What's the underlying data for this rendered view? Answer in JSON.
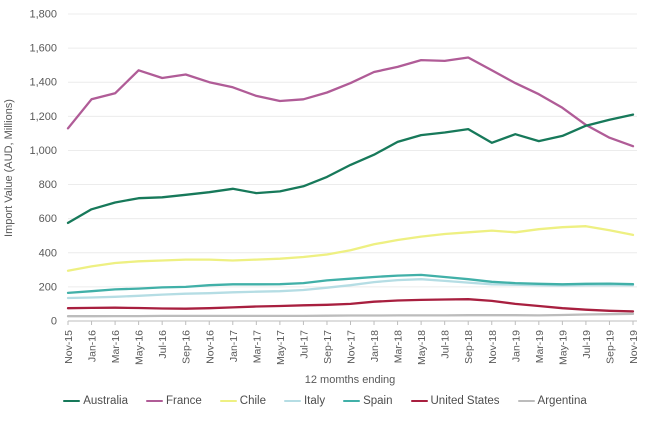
{
  "chart_data": {
    "type": "line",
    "title": "",
    "xlabel": "12 momths ending",
    "ylabel": "Import Value (AUD, Millions)",
    "legend_position": "bottom",
    "grid": true,
    "ylim": [
      0,
      1800
    ],
    "ytick_step": 200,
    "x": [
      "Nov-15",
      "Jan-16",
      "Mar-16",
      "May-16",
      "Jul-16",
      "Sep-16",
      "Nov-16",
      "Jan-17",
      "Mar-17",
      "May-17",
      "Jul-17",
      "Sep-17",
      "Nov-17",
      "Jan-18",
      "Mar-18",
      "May-18",
      "Jul-18",
      "Sep-18",
      "Nov-18",
      "Jan-19",
      "Mar-19",
      "May-19",
      "Jul-19",
      "Sep-19",
      "Nov-19"
    ],
    "series": [
      {
        "name": "Australia",
        "color": "#17795a",
        "values": [
          575,
          655,
          695,
          720,
          725,
          740,
          755,
          775,
          750,
          760,
          790,
          845,
          915,
          975,
          1050,
          1090,
          1105,
          1125,
          1045,
          1095,
          1055,
          1085,
          1145,
          1180,
          1210
        ]
      },
      {
        "name": "France",
        "color": "#b05c97",
        "values": [
          1130,
          1300,
          1335,
          1470,
          1425,
          1445,
          1400,
          1370,
          1320,
          1290,
          1300,
          1340,
          1395,
          1460,
          1490,
          1530,
          1525,
          1545,
          1470,
          1395,
          1330,
          1250,
          1150,
          1075,
          1025
        ]
      },
      {
        "name": "Chile",
        "color": "#eef082",
        "values": [
          295,
          320,
          340,
          350,
          355,
          360,
          360,
          355,
          360,
          365,
          375,
          390,
          415,
          450,
          475,
          495,
          510,
          520,
          530,
          520,
          538,
          550,
          556,
          532,
          505
        ]
      },
      {
        "name": "Italy",
        "color": "#b5dde4",
        "values": [
          135,
          138,
          142,
          148,
          155,
          160,
          163,
          168,
          172,
          175,
          182,
          195,
          210,
          228,
          240,
          245,
          235,
          225,
          215,
          213,
          210,
          208,
          210,
          210,
          210
        ]
      },
      {
        "name": "Spain",
        "color": "#41b0a8",
        "values": [
          165,
          175,
          185,
          190,
          197,
          200,
          210,
          215,
          215,
          216,
          222,
          238,
          248,
          258,
          266,
          270,
          258,
          245,
          230,
          222,
          218,
          215,
          218,
          219,
          216
        ]
      },
      {
        "name": "United States",
        "color": "#a81f3f",
        "values": [
          75,
          77,
          78,
          76,
          73,
          72,
          75,
          80,
          85,
          88,
          92,
          95,
          100,
          113,
          120,
          124,
          126,
          128,
          118,
          100,
          88,
          75,
          66,
          60,
          56
        ]
      },
      {
        "name": "Argentina",
        "color": "#bcbcbc",
        "values": [
          28,
          28,
          29,
          29,
          30,
          30,
          30,
          30,
          30,
          30,
          30,
          31,
          32,
          32,
          33,
          33,
          33,
          34,
          34,
          34,
          33,
          35,
          38,
          40,
          42
        ]
      }
    ]
  }
}
